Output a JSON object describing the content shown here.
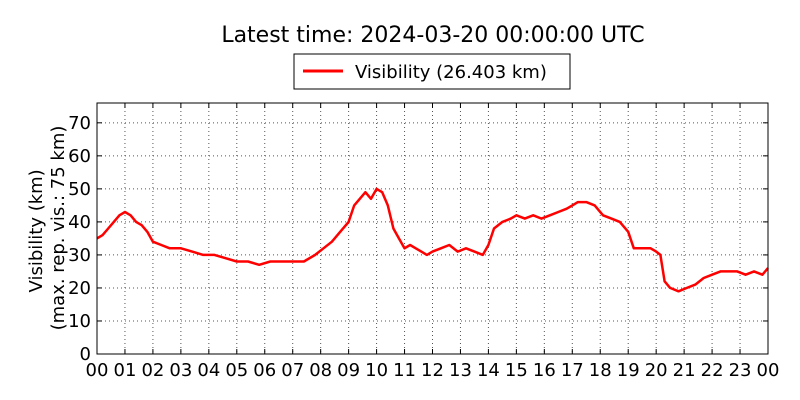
{
  "chart_data": {
    "type": "line",
    "title": "Latest time: 2024-03-20 00:00:00 UTC",
    "xlabel": "",
    "ylabel": [
      "Visibility (km)",
      "(max. rep. vis.: 75 km)"
    ],
    "xlim": [
      0,
      24
    ],
    "ylim": [
      0,
      76
    ],
    "x_ticks": [
      "00",
      "01",
      "02",
      "03",
      "04",
      "05",
      "06",
      "07",
      "08",
      "09",
      "10",
      "11",
      "12",
      "13",
      "14",
      "15",
      "16",
      "17",
      "18",
      "19",
      "20",
      "21",
      "22",
      "23",
      "00"
    ],
    "y_ticks": [
      0,
      10,
      20,
      30,
      40,
      50,
      60,
      70
    ],
    "grid": true,
    "legend": {
      "placement": "top-center",
      "entries": [
        "Visibility (26.403 km)"
      ]
    },
    "series": [
      {
        "name": "Visibility (26.403 km)",
        "color": "#ff0000",
        "x": [
          0,
          0.2,
          0.4,
          0.6,
          0.8,
          1.0,
          1.2,
          1.4,
          1.6,
          1.8,
          2.0,
          2.3,
          2.6,
          3.0,
          3.4,
          3.8,
          4.2,
          4.6,
          5.0,
          5.4,
          5.8,
          6.2,
          6.6,
          7.0,
          7.4,
          7.8,
          8.1,
          8.4,
          8.7,
          9.0,
          9.2,
          9.4,
          9.6,
          9.8,
          10.0,
          10.2,
          10.4,
          10.6,
          10.8,
          11.0,
          11.2,
          11.4,
          11.6,
          11.8,
          12.0,
          12.3,
          12.6,
          12.9,
          13.2,
          13.5,
          13.8,
          14.0,
          14.2,
          14.5,
          14.8,
          15.0,
          15.3,
          15.6,
          15.9,
          16.2,
          16.5,
          16.8,
          17.0,
          17.2,
          17.5,
          17.8,
          18.1,
          18.4,
          18.7,
          19.0,
          19.2,
          19.5,
          19.8,
          20.0,
          20.15,
          20.3,
          20.5,
          20.8,
          21.1,
          21.4,
          21.7,
          22.0,
          22.3,
          22.6,
          22.9,
          23.2,
          23.5,
          23.8,
          24.0
        ],
        "values": [
          35,
          36,
          38,
          40,
          42,
          43,
          42,
          40,
          39,
          37,
          34,
          33,
          32,
          32,
          31,
          30,
          30,
          29,
          28,
          28,
          27,
          28,
          28,
          28,
          28,
          30,
          32,
          34,
          37,
          40,
          45,
          47,
          49,
          47,
          50,
          49,
          45,
          38,
          35,
          32,
          33,
          32,
          31,
          30,
          31,
          32,
          33,
          31,
          32,
          31,
          30,
          33,
          38,
          40,
          41,
          42,
          41,
          42,
          41,
          42,
          43,
          44,
          45,
          46,
          46,
          45,
          42,
          41,
          40,
          37,
          32,
          32,
          32,
          31,
          30,
          22,
          20,
          19,
          20,
          21,
          23,
          24,
          25,
          25,
          25,
          24,
          25,
          24,
          26
        ]
      }
    ]
  }
}
